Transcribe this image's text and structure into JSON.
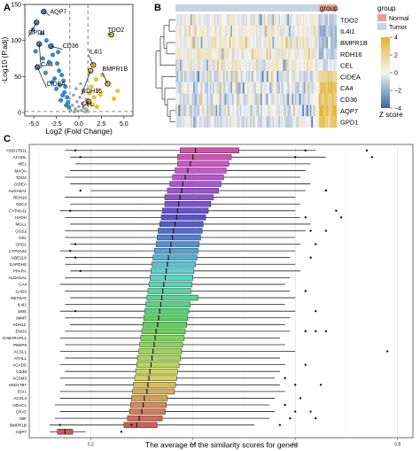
{
  "panels": {
    "a": "A",
    "b": "B",
    "c": "C"
  },
  "colors": {
    "down": "#2b7bba",
    "up": "#e8b927",
    "ns": "#9a9a9a",
    "normal": "#e8a096",
    "tumor": "#c8d3e6",
    "heat_low": "#3568a8",
    "heat_mid": "#f4f4f4",
    "heat_high": "#e3b32c"
  },
  "chart_data": [
    {
      "type": "scatter",
      "panel": "A",
      "xlabel": "Log2 (Fold Change)",
      "ylabel": "-Log10 (P.adj)",
      "xlim": [
        -6,
        6
      ],
      "ylim": [
        -5,
        150
      ],
      "xticks": [
        "-5.0",
        "-2.5",
        "0.0",
        "2.5",
        "5.0"
      ],
      "xtick_values": [
        -5,
        -2.5,
        0,
        2.5,
        5
      ],
      "yticks": [
        "0",
        "50",
        "100",
        "150"
      ],
      "ytick_values": [
        0,
        50,
        100,
        150
      ],
      "fc_cutoff": 1,
      "p_cutoff": 1.3,
      "points": [
        {
          "x": -3.9,
          "y": 140,
          "g": "down"
        },
        {
          "x": -4.7,
          "y": 125,
          "g": "down"
        },
        {
          "x": -5.1,
          "y": 115,
          "g": "down"
        },
        {
          "x": -4.1,
          "y": 110,
          "g": "down"
        },
        {
          "x": -3.6,
          "y": 100,
          "g": "down"
        },
        {
          "x": -4.4,
          "y": 95,
          "g": "down"
        },
        {
          "x": -3.1,
          "y": 92,
          "g": "down"
        },
        {
          "x": -4.8,
          "y": 85,
          "g": "down"
        },
        {
          "x": -2.9,
          "y": 80,
          "g": "down"
        },
        {
          "x": -4.0,
          "y": 75,
          "g": "down"
        },
        {
          "x": -3.3,
          "y": 70,
          "g": "down"
        },
        {
          "x": -2.4,
          "y": 68,
          "g": "down"
        },
        {
          "x": -4.6,
          "y": 63,
          "g": "down"
        },
        {
          "x": -2.2,
          "y": 58,
          "g": "down"
        },
        {
          "x": -3.7,
          "y": 55,
          "g": "down"
        },
        {
          "x": -1.9,
          "y": 52,
          "g": "down"
        },
        {
          "x": -2.7,
          "y": 47,
          "g": "down"
        },
        {
          "x": -1.7,
          "y": 44,
          "g": "down"
        },
        {
          "x": -3.0,
          "y": 42,
          "g": "down"
        },
        {
          "x": -2.1,
          "y": 38,
          "g": "down"
        },
        {
          "x": -1.5,
          "y": 36,
          "g": "down"
        },
        {
          "x": -2.5,
          "y": 33,
          "g": "down"
        },
        {
          "x": -1.6,
          "y": 28,
          "g": "down"
        },
        {
          "x": -1.8,
          "y": 24,
          "g": "down"
        },
        {
          "x": -1.3,
          "y": 21,
          "g": "down"
        },
        {
          "x": -2.0,
          "y": 17,
          "g": "down"
        },
        {
          "x": -1.2,
          "y": 14,
          "g": "down"
        },
        {
          "x": -1.4,
          "y": 10,
          "g": "down"
        },
        {
          "x": -1.1,
          "y": 7,
          "g": "down"
        },
        {
          "x": -2.3,
          "y": 84,
          "g": "down"
        },
        {
          "x": 3.6,
          "y": 108,
          "g": "up"
        },
        {
          "x": 1.6,
          "y": 66,
          "g": "up"
        },
        {
          "x": 1.3,
          "y": 58,
          "g": "up"
        },
        {
          "x": 2.6,
          "y": 52,
          "g": "up"
        },
        {
          "x": 1.9,
          "y": 46,
          "g": "up"
        },
        {
          "x": 3.2,
          "y": 40,
          "g": "up"
        },
        {
          "x": 1.4,
          "y": 36,
          "g": "up"
        },
        {
          "x": 2.1,
          "y": 31,
          "g": "up"
        },
        {
          "x": 1.2,
          "y": 27,
          "g": "up"
        },
        {
          "x": 2.4,
          "y": 25,
          "g": "up"
        },
        {
          "x": 1.7,
          "y": 21,
          "g": "up"
        },
        {
          "x": 3.9,
          "y": 19,
          "g": "up"
        },
        {
          "x": 1.1,
          "y": 15,
          "g": "up"
        },
        {
          "x": 1.5,
          "y": 11,
          "g": "up"
        },
        {
          "x": 2.0,
          "y": 8,
          "g": "up"
        },
        {
          "x": 4.3,
          "y": 30,
          "g": "up"
        },
        {
          "x": 0.2,
          "y": 40,
          "g": "ns"
        },
        {
          "x": -0.3,
          "y": 33,
          "g": "ns"
        },
        {
          "x": 0.5,
          "y": 28,
          "g": "ns"
        },
        {
          "x": -0.6,
          "y": 24,
          "g": "ns"
        },
        {
          "x": 0.1,
          "y": 21,
          "g": "ns"
        },
        {
          "x": 0.8,
          "y": 18,
          "g": "ns"
        },
        {
          "x": -0.2,
          "y": 15,
          "g": "ns"
        },
        {
          "x": 0.4,
          "y": 12,
          "g": "ns"
        },
        {
          "x": -0.7,
          "y": 10,
          "g": "ns"
        },
        {
          "x": 0.0,
          "y": 8,
          "g": "ns"
        },
        {
          "x": 0.6,
          "y": 6,
          "g": "ns"
        },
        {
          "x": -0.4,
          "y": 5,
          "g": "ns"
        },
        {
          "x": 0.3,
          "y": 3,
          "g": "ns"
        },
        {
          "x": -0.1,
          "y": 2,
          "g": "ns"
        },
        {
          "x": 0.9,
          "y": 4,
          "g": "ns"
        },
        {
          "x": -0.9,
          "y": 3,
          "g": "ns"
        },
        {
          "x": 0.7,
          "y": 1,
          "g": "ns"
        },
        {
          "x": -0.5,
          "y": 1,
          "g": "ns"
        }
      ],
      "labels": [
        {
          "text": "AQP7",
          "x": -3.9,
          "y": 140,
          "lx": -3.2,
          "ly": 137,
          "g": "down"
        },
        {
          "text": "GPD1",
          "x": -4.7,
          "y": 125,
          "lx": -5.6,
          "ly": 108,
          "g": "down"
        },
        {
          "text": "CD36",
          "x": -3.1,
          "y": 92,
          "lx": -1.8,
          "ly": 90,
          "g": "down"
        },
        {
          "text": "CA4",
          "x": -4.4,
          "y": 95,
          "lx": -4.2,
          "ly": 64,
          "g": "down"
        },
        {
          "text": "CIDEA",
          "x": -4.6,
          "y": 63,
          "lx": -3.6,
          "ly": 37,
          "g": "down"
        },
        {
          "text": "TDO2",
          "x": 3.6,
          "y": 108,
          "lx": 3.2,
          "ly": 112,
          "g": "up"
        },
        {
          "text": "IL4I1",
          "x": 1.6,
          "y": 66,
          "lx": 1.1,
          "ly": 82,
          "g": "up"
        },
        {
          "text": "BMPR1B",
          "x": 3.2,
          "y": 40,
          "lx": 2.6,
          "ly": 58,
          "g": "up"
        },
        {
          "text": "RDH16",
          "x": 1.3,
          "y": 58,
          "lx": 0.3,
          "ly": 27,
          "g": "up"
        },
        {
          "text": "CEL",
          "x": 1.1,
          "y": 15,
          "lx": 0.3,
          "ly": 9,
          "g": "up"
        }
      ]
    },
    {
      "type": "heatmap",
      "panel": "B",
      "group_label": "group",
      "legend_title": "group",
      "legend_entries": [
        {
          "name": "Normal",
          "color": "#e8a096"
        },
        {
          "name": "Tumor",
          "color": "#c8d3e6"
        }
      ],
      "colorbar_title": "Z score",
      "colorbar_ticks": [
        "4",
        "2",
        "0",
        "−2",
        "−4"
      ],
      "colorbar_tick_values": [
        4,
        2,
        0,
        -2,
        -4
      ],
      "rows": [
        "TDO2",
        "IL4I1",
        "BMPR1B",
        "RDH16",
        "CEL",
        "CIDEA",
        "CA4",
        "CD36",
        "AQP7",
        "GPD1"
      ],
      "n_tumor": 96,
      "n_normal": 12,
      "row_pattern": {
        "TDO2": {
          "tumor": 0.1,
          "normal": -0.9
        },
        "IL4I1": {
          "tumor": 0.35,
          "normal": -1.8
        },
        "BMPR1B": {
          "tumor": 0.45,
          "normal": -1.5
        },
        "RDH16": {
          "tumor": 0.4,
          "normal": -1.4
        },
        "CEL": {
          "tumor": 0.1,
          "normal": -0.6
        },
        "CIDEA": {
          "tumor": -0.35,
          "normal": 2.0
        },
        "CA4": {
          "tumor": -0.45,
          "normal": 3.0
        },
        "CD36": {
          "tumor": -0.4,
          "normal": 2.8
        },
        "AQP7": {
          "tumor": -0.45,
          "normal": 3.2
        },
        "GPD1": {
          "tumor": -0.4,
          "normal": 3.0
        }
      }
    },
    {
      "type": "boxplot",
      "panel": "C",
      "xlabel": "The average of the similarity scores for genes",
      "xlim": [
        0.08,
        0.83
      ],
      "xticks": [
        "0.2",
        "0.4",
        "0.6",
        "0.8"
      ],
      "xtick_values": [
        0.2,
        0.4,
        0.6,
        0.8
      ],
      "categories": [
        "HSD17B11",
        "ACADL",
        "ME1",
        "MAOA",
        "TDO2",
        "CIDEA",
        "ALDH3A1",
        "RDH16",
        "ADC3",
        "CYP4A11",
        "HADH",
        "MGLL",
        "GGS2",
        "CEL",
        "GPD1",
        "CYP4A22",
        "UBE2L6",
        "GAPDHS",
        "PPARA",
        "ALDH1A1",
        "CA4",
        "GAD2",
        "RETSAT",
        "IL4I1",
        "SMS",
        "IMMT",
        "ADH1C",
        "ENO2",
        "GABARAPL1",
        "PEEP6",
        "ACSL1",
        "ATHL1",
        "ACADS",
        "CD36",
        "ACSM3",
        "HSD17B7",
        "ECI1",
        "ACSL4",
        "HDAC1",
        "CRAT",
        "MIF",
        "BMPR1B",
        "AQP7"
      ],
      "boxes": [
        {
          "q1": 0.375,
          "med": 0.405,
          "q3": 0.49,
          "lo": 0.15,
          "hi": 0.64,
          "out": [
            0.17,
            0.62,
            0.74
          ]
        },
        {
          "q1": 0.37,
          "med": 0.4,
          "q3": 0.475,
          "lo": 0.16,
          "hi": 0.66,
          "out": [
            0.18,
            0.6,
            0.75
          ]
        },
        {
          "q1": 0.37,
          "med": 0.395,
          "q3": 0.47,
          "lo": 0.17,
          "hi": 0.63,
          "out": []
        },
        {
          "q1": 0.365,
          "med": 0.39,
          "q3": 0.465,
          "lo": 0.16,
          "hi": 0.62,
          "out": []
        },
        {
          "q1": 0.36,
          "med": 0.385,
          "q3": 0.46,
          "lo": 0.15,
          "hi": 0.61,
          "out": []
        },
        {
          "q1": 0.355,
          "med": 0.38,
          "q3": 0.455,
          "lo": 0.16,
          "hi": 0.63,
          "out": []
        },
        {
          "q1": 0.35,
          "med": 0.378,
          "q3": 0.45,
          "lo": 0.2,
          "hi": 0.62,
          "out": [
            0.18,
            0.66
          ]
        },
        {
          "q1": 0.345,
          "med": 0.375,
          "q3": 0.44,
          "lo": 0.15,
          "hi": 0.6,
          "out": []
        },
        {
          "q1": 0.345,
          "med": 0.372,
          "q3": 0.435,
          "lo": 0.16,
          "hi": 0.61,
          "out": []
        },
        {
          "q1": 0.34,
          "med": 0.37,
          "q3": 0.43,
          "lo": 0.14,
          "hi": 0.6,
          "out": [
            0.16,
            0.68
          ]
        },
        {
          "q1": 0.338,
          "med": 0.368,
          "q3": 0.425,
          "lo": 0.15,
          "hi": 0.61,
          "out": [
            0.62,
            0.69
          ]
        },
        {
          "q1": 0.335,
          "med": 0.365,
          "q3": 0.42,
          "lo": 0.16,
          "hi": 0.63,
          "out": []
        },
        {
          "q1": 0.332,
          "med": 0.362,
          "q3": 0.418,
          "lo": 0.15,
          "hi": 0.62,
          "out": [
            0.63,
            0.66
          ]
        },
        {
          "q1": 0.33,
          "med": 0.36,
          "q3": 0.415,
          "lo": 0.15,
          "hi": 0.6,
          "out": []
        },
        {
          "q1": 0.328,
          "med": 0.357,
          "q3": 0.412,
          "lo": 0.16,
          "hi": 0.61,
          "out": [
            0.17,
            0.64
          ]
        },
        {
          "q1": 0.325,
          "med": 0.355,
          "q3": 0.41,
          "lo": 0.14,
          "hi": 0.6,
          "out": [
            0.16
          ]
        },
        {
          "q1": 0.322,
          "med": 0.352,
          "q3": 0.408,
          "lo": 0.15,
          "hi": 0.59,
          "out": [
            0.17,
            0.63
          ]
        },
        {
          "q1": 0.32,
          "med": 0.35,
          "q3": 0.405,
          "lo": 0.15,
          "hi": 0.6,
          "out": []
        },
        {
          "q1": 0.318,
          "med": 0.348,
          "q3": 0.402,
          "lo": 0.16,
          "hi": 0.61,
          "out": [
            0.18
          ]
        },
        {
          "q1": 0.316,
          "med": 0.346,
          "q3": 0.4,
          "lo": 0.15,
          "hi": 0.59,
          "out": []
        },
        {
          "q1": 0.314,
          "med": 0.343,
          "q3": 0.398,
          "lo": 0.14,
          "hi": 0.58,
          "out": []
        },
        {
          "q1": 0.312,
          "med": 0.341,
          "q3": 0.396,
          "lo": 0.15,
          "hi": 0.59,
          "out": [
            0.62
          ]
        },
        {
          "q1": 0.31,
          "med": 0.339,
          "q3": 0.41,
          "lo": 0.16,
          "hi": 0.6,
          "out": []
        },
        {
          "q1": 0.308,
          "med": 0.337,
          "q3": 0.395,
          "lo": 0.15,
          "hi": 0.58,
          "out": []
        },
        {
          "q1": 0.306,
          "med": 0.335,
          "q3": 0.392,
          "lo": 0.14,
          "hi": 0.6,
          "out": [
            0.17,
            0.64
          ]
        },
        {
          "q1": 0.304,
          "med": 0.333,
          "q3": 0.39,
          "lo": 0.15,
          "hi": 0.59,
          "out": []
        },
        {
          "q1": 0.302,
          "med": 0.331,
          "q3": 0.388,
          "lo": 0.16,
          "hi": 0.58,
          "out": []
        },
        {
          "q1": 0.3,
          "med": 0.328,
          "q3": 0.385,
          "lo": 0.15,
          "hi": 0.59,
          "out": [
            0.62,
            0.64,
            0.66
          ]
        },
        {
          "q1": 0.298,
          "med": 0.326,
          "q3": 0.383,
          "lo": 0.14,
          "hi": 0.57,
          "out": []
        },
        {
          "q1": 0.296,
          "med": 0.324,
          "q3": 0.38,
          "lo": 0.15,
          "hi": 0.58,
          "out": []
        },
        {
          "q1": 0.294,
          "med": 0.322,
          "q3": 0.378,
          "lo": 0.14,
          "hi": 0.6,
          "out": [
            0.78
          ]
        },
        {
          "q1": 0.292,
          "med": 0.32,
          "q3": 0.376,
          "lo": 0.15,
          "hi": 0.57,
          "out": []
        },
        {
          "q1": 0.29,
          "med": 0.318,
          "q3": 0.373,
          "lo": 0.14,
          "hi": 0.58,
          "out": [
            0.62
          ]
        },
        {
          "q1": 0.288,
          "med": 0.316,
          "q3": 0.37,
          "lo": 0.15,
          "hi": 0.57,
          "out": []
        },
        {
          "q1": 0.286,
          "med": 0.314,
          "q3": 0.368,
          "lo": 0.14,
          "hi": 0.56,
          "out": [
            0.58
          ]
        },
        {
          "q1": 0.284,
          "med": 0.312,
          "q3": 0.366,
          "lo": 0.15,
          "hi": 0.57,
          "out": [
            0.6,
            0.65
          ]
        },
        {
          "q1": 0.282,
          "med": 0.31,
          "q3": 0.364,
          "lo": 0.14,
          "hi": 0.58,
          "out": []
        },
        {
          "q1": 0.28,
          "med": 0.305,
          "q3": 0.35,
          "lo": 0.14,
          "hi": 0.56,
          "out": [
            0.61
          ]
        },
        {
          "q1": 0.278,
          "med": 0.303,
          "q3": 0.348,
          "lo": 0.13,
          "hi": 0.55,
          "out": [
            0.58
          ]
        },
        {
          "q1": 0.276,
          "med": 0.3,
          "q3": 0.346,
          "lo": 0.14,
          "hi": 0.56,
          "out": [
            0.6,
            0.63
          ]
        },
        {
          "q1": 0.272,
          "med": 0.295,
          "q3": 0.34,
          "lo": 0.13,
          "hi": 0.55,
          "out": [
            0.59,
            0.64
          ]
        },
        {
          "q1": 0.265,
          "med": 0.29,
          "q3": 0.33,
          "lo": 0.12,
          "hi": 0.52,
          "out": [
            0.14,
            0.28,
            0.57
          ]
        },
        {
          "q1": 0.135,
          "med": 0.15,
          "q3": 0.165,
          "lo": 0.12,
          "hi": 0.19,
          "out": [
            0.26
          ]
        }
      ]
    }
  ]
}
